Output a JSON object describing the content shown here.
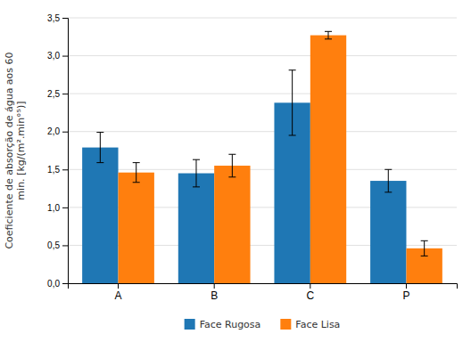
{
  "chart_data": {
    "type": "bar",
    "categories": [
      "A",
      "B",
      "C",
      "P"
    ],
    "series": [
      {
        "name": "Face Rugosa",
        "values": [
          1.79,
          1.45,
          2.38,
          1.35
        ],
        "errors": [
          0.2,
          0.18,
          0.43,
          0.15
        ]
      },
      {
        "name": "Face Lisa",
        "values": [
          1.46,
          1.55,
          3.27,
          0.46
        ],
        "errors": [
          0.13,
          0.15,
          0.05,
          0.1
        ]
      }
    ],
    "ylabel": "Coeficiente de absorção de água aos 60\nmin. [kg/(m².min°⁵)]",
    "ylim": [
      0,
      3.5
    ],
    "yticks": [
      {
        "value": 0.0,
        "label": "0,0"
      },
      {
        "value": 0.5,
        "label": "0,5"
      },
      {
        "value": 1.0,
        "label": "1,0"
      },
      {
        "value": 1.5,
        "label": "1,5"
      },
      {
        "value": 2.0,
        "label": "2,0"
      },
      {
        "value": 2.5,
        "label": "2,5"
      },
      {
        "value": 3.0,
        "label": "3,0"
      },
      {
        "value": 3.5,
        "label": "3,5"
      }
    ],
    "grid": true,
    "legend": "bottom"
  }
}
